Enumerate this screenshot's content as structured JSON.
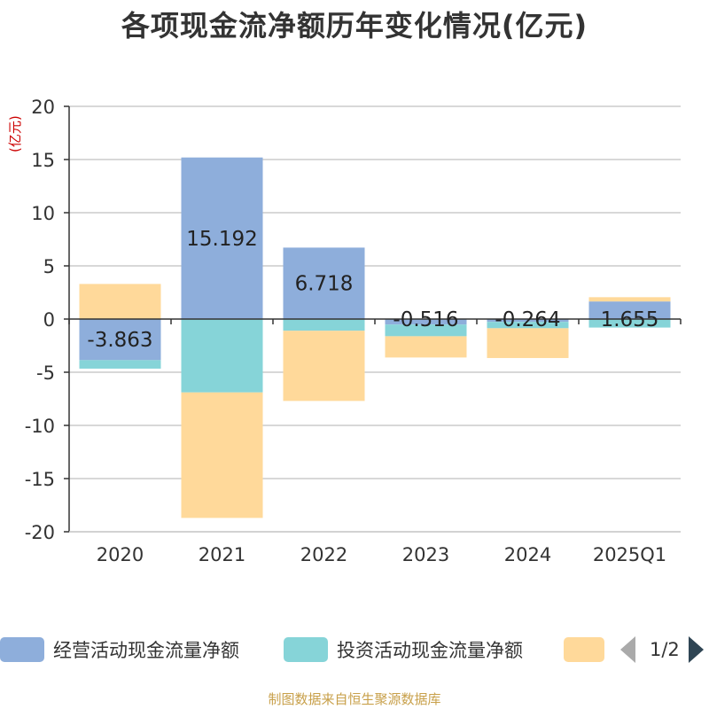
{
  "title": "各项现金流净额历年变化情况(亿元)",
  "unit_label": "(亿元)",
  "source": "制图数据来自恒生聚源数据库",
  "pager": {
    "text": "1/2"
  },
  "colors": {
    "operating": "#8eaedb",
    "investing": "#86d4d8",
    "financing": "#ffd99a",
    "axis": "#333333",
    "grid": "#cccccc",
    "unit": "#cc0000"
  },
  "legend": [
    {
      "label": "经营活动现金流量净额",
      "color": "#8eaedb"
    },
    {
      "label": "投资活动现金流量净额",
      "color": "#86d4d8"
    },
    {
      "label": "",
      "color": "#ffd99a"
    }
  ],
  "chart_data": {
    "type": "bar",
    "stacked": true,
    "title": "各项现金流净额历年变化情况(亿元)",
    "ylabel": "(亿元)",
    "ylim": [
      -20,
      20
    ],
    "yticks": [
      20,
      15,
      10,
      5,
      0,
      -5,
      -10,
      -15,
      -20
    ],
    "grid": true,
    "legend_position": "bottom",
    "categories": [
      "2020",
      "2021",
      "2022",
      "2023",
      "2024",
      "2025Q1"
    ],
    "series": [
      {
        "name": "经营活动现金流量净额",
        "values": [
          -3.863,
          15.192,
          6.718,
          -0.516,
          -0.264,
          1.655
        ],
        "labels": [
          "-3.863",
          "15.192",
          "6.718",
          "-0.516",
          "-0.264",
          "1.655"
        ]
      },
      {
        "name": "投资活动现金流量净额",
        "values": [
          -0.8,
          -6.9,
          -1.1,
          -1.1,
          -0.6,
          -0.8
        ]
      },
      {
        "values": [
          3.3,
          -11.8,
          -6.6,
          -2.0,
          -2.8,
          0.4
        ]
      }
    ]
  }
}
